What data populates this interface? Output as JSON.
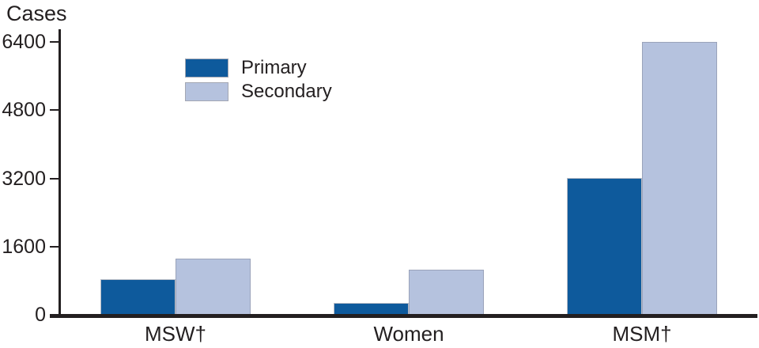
{
  "colors": {
    "primary_fill": "#0E5A9C",
    "secondary_fill": "#B5C2DE",
    "axis": "#231F20",
    "background": "#FFFFFF"
  },
  "chart_data": {
    "type": "bar",
    "title": "",
    "ylabel": "Cases",
    "xlabel": "",
    "categories": [
      "MSW†",
      "Women",
      "MSM†"
    ],
    "series": [
      {
        "name": "Primary",
        "color": "#0E5A9C",
        "values": [
          840,
          270,
          3210
        ]
      },
      {
        "name": "Secondary",
        "color": "#B5C2DE",
        "values": [
          1320,
          1060,
          6400
        ]
      }
    ],
    "y_ticks": [
      0,
      1600,
      3200,
      4800,
      6400
    ],
    "ylim": [
      0,
      6400
    ],
    "grid": false,
    "legend_position": "inside-top-left"
  },
  "legend": {
    "primary_label": "Primary",
    "secondary_label": "Secondary"
  }
}
